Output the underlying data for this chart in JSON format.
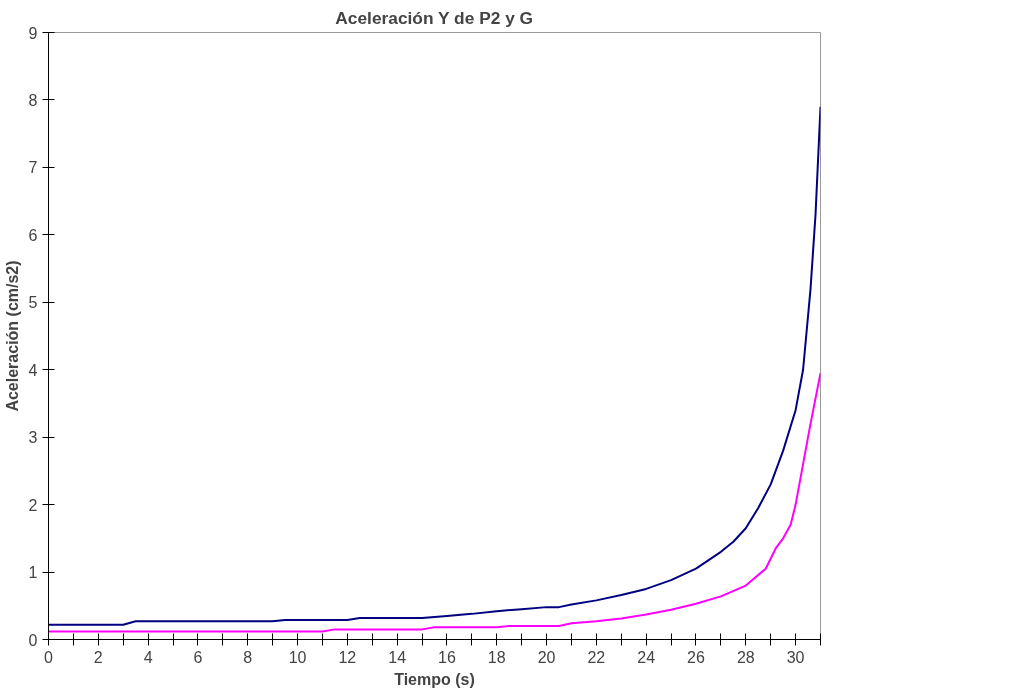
{
  "chart_data": {
    "type": "line",
    "title": "Aceleración Y de P2 y G",
    "xlabel": "Tiempo (s)",
    "ylabel": "Aceleración (cm/s2)",
    "xlim": [
      0,
      31
    ],
    "ylim": [
      0,
      9
    ],
    "xticks": [
      0,
      {
        "value": 1,
        "label": null
      },
      2,
      {
        "value": 3,
        "label": null
      },
      4,
      {
        "value": 5,
        "label": null
      },
      6,
      {
        "value": 7,
        "label": null
      },
      8,
      {
        "value": 9,
        "label": null
      },
      10,
      {
        "value": 11,
        "label": null
      },
      12,
      {
        "value": 13,
        "label": null
      },
      14,
      {
        "value": 15,
        "label": null
      },
      16,
      {
        "value": 17,
        "label": null
      },
      18,
      {
        "value": 19,
        "label": null
      },
      20,
      {
        "value": 21,
        "label": null
      },
      22,
      {
        "value": 23,
        "label": null
      },
      24,
      {
        "value": 25,
        "label": null
      },
      26,
      {
        "value": 27,
        "label": null
      },
      28,
      {
        "value": 29,
        "label": null
      },
      30,
      {
        "value": 31,
        "label": null
      }
    ],
    "yticks": [
      0,
      1,
      2,
      3,
      4,
      5,
      6,
      7,
      8,
      9
    ],
    "grid": false,
    "series": [
      {
        "color": "#000080",
        "x": [
          0,
          3,
          3.5,
          9,
          9.5,
          12,
          12.5,
          15,
          16,
          17,
          18,
          19,
          20,
          20.5,
          21,
          22,
          23,
          24,
          25,
          26,
          27,
          27.5,
          28,
          28.5,
          29,
          29.5,
          30,
          30.3,
          30.6,
          30.8,
          31
        ],
        "values": [
          0.22,
          0.22,
          0.27,
          0.27,
          0.29,
          0.29,
          0.32,
          0.32,
          0.35,
          0.38,
          0.42,
          0.45,
          0.48,
          0.48,
          0.52,
          0.58,
          0.66,
          0.75,
          0.88,
          1.05,
          1.3,
          1.45,
          1.65,
          1.95,
          2.3,
          2.8,
          3.4,
          4.0,
          5.2,
          6.3,
          7.9
        ]
      },
      {
        "color": "#ff00ff",
        "x": [
          0,
          11,
          11.5,
          15,
          15.5,
          18,
          18.5,
          20.5,
          21,
          22,
          23,
          24,
          25,
          26,
          27,
          28,
          28.8,
          29.2,
          29.5,
          29.8,
          30,
          30.3,
          30.6,
          31
        ],
        "values": [
          0.12,
          0.12,
          0.15,
          0.15,
          0.18,
          0.18,
          0.2,
          0.2,
          0.24,
          0.27,
          0.31,
          0.37,
          0.44,
          0.53,
          0.64,
          0.8,
          1.05,
          1.35,
          1.5,
          1.7,
          2.0,
          2.6,
          3.2,
          3.95
        ]
      }
    ]
  }
}
